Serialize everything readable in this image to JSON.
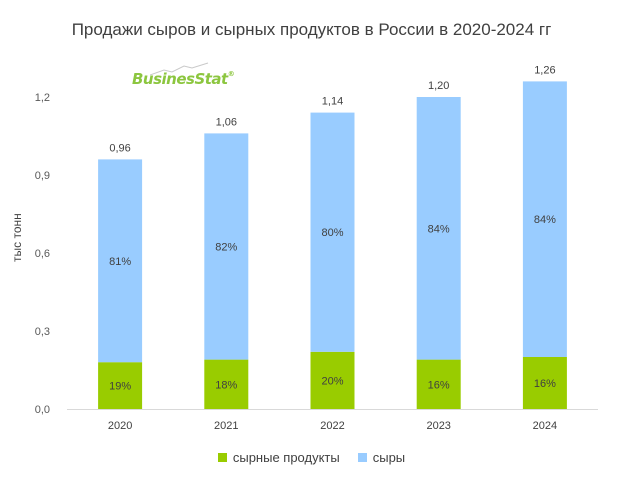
{
  "chart_data": {
    "type": "bar",
    "stacked": true,
    "title": "Продажи сыров и  сырных продуктов в России в 2020-2024 гг",
    "ylabel": "тыс тонн",
    "xlabel": "",
    "categories": [
      "2020",
      "2021",
      "2022",
      "2023",
      "2024"
    ],
    "totals": [
      0.96,
      1.06,
      1.14,
      1.2,
      1.26
    ],
    "total_labels": [
      "0,96",
      "1,06",
      "1,14",
      "1,20",
      "1,26"
    ],
    "series": [
      {
        "name": "сырные продукты",
        "color": "#99cc00",
        "share_labels": [
          "19%",
          "18%",
          "20%",
          "16%",
          "16%"
        ],
        "values": [
          0.18,
          0.19,
          0.22,
          0.19,
          0.2
        ]
      },
      {
        "name": "сыры",
        "color": "#99ccff",
        "share_labels": [
          "81%",
          "82%",
          "80%",
          "84%",
          "84%"
        ],
        "values": [
          0.78,
          0.87,
          0.92,
          1.01,
          1.06
        ]
      }
    ],
    "ylim": [
      0,
      1.2
    ],
    "yticks": [
      0,
      0.3,
      0.6,
      0.9,
      1.2
    ],
    "ytick_labels": [
      "0,0",
      "0,3",
      "0,6",
      "0,9",
      "1,2"
    ],
    "grid": false,
    "legend_position": "bottom"
  },
  "logo": {
    "text": "BusinesStat",
    "mark": "®"
  }
}
